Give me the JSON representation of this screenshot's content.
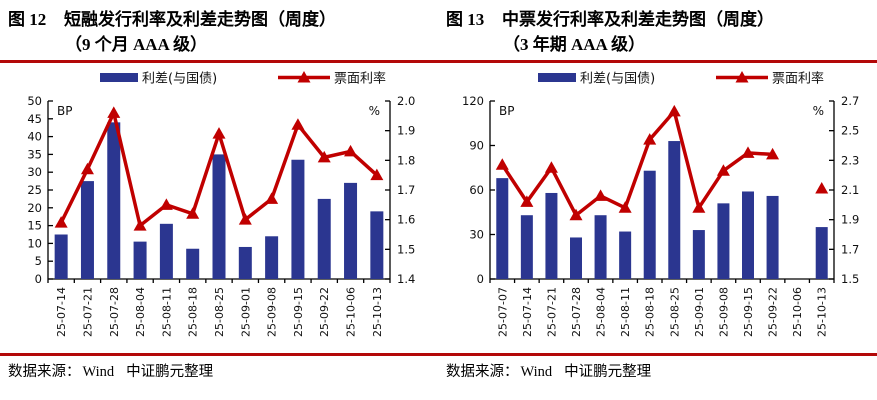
{
  "colors": {
    "bar": "#2b3690",
    "line": "#c00000",
    "rule": "#b30808",
    "axis": "#000000"
  },
  "legend": {
    "bar_label": "利差(与国债)",
    "line_label": "票面利率"
  },
  "figures": [
    {
      "fig_label": "图 12",
      "title": "短融发行利率及利差走势图（周度）",
      "subtitle": "（9 个月 AAA 级）",
      "source_prefix": "数据来源：",
      "source_wind": "Wind",
      "source_suffix": "中证鹏元整理"
    },
    {
      "fig_label": "图 13",
      "title": "中票发行利率及利差走势图（周度）",
      "subtitle": "（3 年期 AAA 级）",
      "source_prefix": "数据来源：",
      "source_wind": "Wind",
      "source_suffix": "中证鹏元整理"
    }
  ],
  "chart_data": [
    {
      "type": "bar",
      "title": "短融发行利率及利差走势图（周度）（9 个月 AAA 级）",
      "legend_position": "top",
      "grid": false,
      "categories": [
        "25-07-14",
        "25-07-21",
        "25-07-28",
        "25-08-04",
        "25-08-11",
        "25-08-18",
        "25-08-25",
        "25-09-01",
        "25-09-08",
        "25-09-15",
        "25-09-22",
        "25-10-06",
        "25-10-13"
      ],
      "series": [
        {
          "name": "利差(与国债)",
          "type": "bar",
          "axis": "left",
          "values": [
            12.5,
            27.5,
            44,
            10.5,
            15.5,
            8.5,
            35,
            9,
            12,
            33.5,
            22.5,
            27,
            19
          ]
        },
        {
          "name": "票面利率",
          "type": "line",
          "axis": "right",
          "values": [
            1.59,
            1.77,
            1.96,
            1.58,
            1.65,
            1.62,
            1.89,
            1.6,
            1.67,
            1.92,
            1.81,
            1.83,
            1.75
          ]
        }
      ],
      "left_axis": {
        "label": "BP",
        "min": 0,
        "max": 50,
        "step": 5,
        "decimals": 0
      },
      "right_axis": {
        "label": "%",
        "min": 1.4,
        "max": 2.0,
        "step": 0.1,
        "decimals": 1
      }
    },
    {
      "type": "bar",
      "title": "中票发行利率及利差走势图（周度）（3 年期 AAA 级）",
      "legend_position": "top",
      "grid": false,
      "categories": [
        "25-07-07",
        "25-07-14",
        "25-07-21",
        "25-07-28",
        "25-08-04",
        "25-08-11",
        "25-08-18",
        "25-08-25",
        "25-09-01",
        "25-09-08",
        "25-09-15",
        "25-09-22",
        "25-10-06",
        "25-10-13"
      ],
      "series": [
        {
          "name": "利差(与国债)",
          "type": "bar",
          "axis": "left",
          "values": [
            68,
            43,
            58,
            28,
            43,
            32,
            73,
            93,
            33,
            51,
            59,
            56,
            null,
            35
          ]
        },
        {
          "name": "票面利率",
          "type": "line",
          "axis": "right",
          "values": [
            2.27,
            2.02,
            2.25,
            1.93,
            2.06,
            1.98,
            2.44,
            2.63,
            1.98,
            2.23,
            2.35,
            2.34,
            null,
            2.11
          ]
        }
      ],
      "left_axis": {
        "label": "BP",
        "min": 0,
        "max": 120,
        "step": 30,
        "decimals": 0
      },
      "right_axis": {
        "label": "%",
        "min": 1.5,
        "max": 2.7,
        "step": 0.2,
        "decimals": 1
      }
    }
  ]
}
